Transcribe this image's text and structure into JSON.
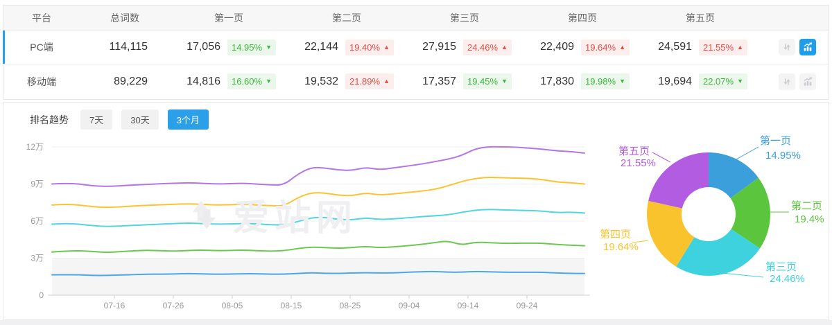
{
  "table": {
    "headers": {
      "platform": "平台",
      "total": "总词数",
      "pages": [
        "第一页",
        "第二页",
        "第三页",
        "第四页",
        "第五页"
      ]
    },
    "rows": [
      {
        "platform": "PC端",
        "total": "114,115",
        "selected": true,
        "chart_active": true,
        "pages": [
          {
            "count": "17,056",
            "pct": "14.95%",
            "dir": "down"
          },
          {
            "count": "22,144",
            "pct": "19.40%",
            "dir": "up"
          },
          {
            "count": "27,915",
            "pct": "24.46%",
            "dir": "up"
          },
          {
            "count": "22,409",
            "pct": "19.64%",
            "dir": "up"
          },
          {
            "count": "24,591",
            "pct": "21.55%",
            "dir": "up"
          }
        ]
      },
      {
        "platform": "移动端",
        "total": "89,229",
        "selected": false,
        "chart_active": false,
        "pages": [
          {
            "count": "14,816",
            "pct": "16.60%",
            "dir": "down"
          },
          {
            "count": "19,532",
            "pct": "21.89%",
            "dir": "up"
          },
          {
            "count": "17,357",
            "pct": "19.45%",
            "dir": "down"
          },
          {
            "count": "17,830",
            "pct": "19.98%",
            "dir": "down"
          },
          {
            "count": "19,694",
            "pct": "22.07%",
            "dir": "down"
          }
        ]
      }
    ]
  },
  "trend": {
    "title": "排名趋势",
    "ranges": [
      {
        "label": "7天",
        "active": false
      },
      {
        "label": "30天",
        "active": false
      },
      {
        "label": "3个月",
        "active": true
      }
    ]
  },
  "watermark": {
    "text": "爱站网"
  },
  "colors": {
    "accent_blue": "#2b9fe8",
    "badge_up_text": "#e0524a",
    "badge_up_bg": "#fdeeee",
    "badge_down_text": "#3eb73e",
    "badge_down_bg": "#eaf7ea"
  },
  "chart_data": [
    {
      "type": "line",
      "title": "",
      "stacked_cumulative": true,
      "grid": "horizontal",
      "ylim": [
        0,
        120000
      ],
      "y_ticks": [
        {
          "label": "0",
          "value_wan": 0
        },
        {
          "label": "3万",
          "value_wan": 3
        },
        {
          "label": "6万",
          "value_wan": 6
        },
        {
          "label": "9万",
          "value_wan": 9
        },
        {
          "label": "12万",
          "value_wan": 12
        }
      ],
      "x_tick_labels": [
        "07-16",
        "07-26",
        "08-05",
        "08-15",
        "08-25",
        "09-04",
        "09-14",
        "09-24"
      ],
      "low_band_wan": [
        0,
        3
      ],
      "series": [
        {
          "name": "blue",
          "color": "#4ba7e8",
          "values_wan": [
            1.65,
            1.66,
            1.65,
            1.6,
            1.6,
            1.64,
            1.66,
            1.7,
            1.7,
            1.72,
            1.75,
            1.72,
            1.7,
            1.71,
            1.74,
            1.74,
            1.7,
            1.7,
            1.76,
            1.82,
            1.77,
            1.76,
            1.8,
            1.82,
            1.8,
            1.8,
            1.86,
            1.9,
            1.92,
            1.86,
            1.86,
            1.92,
            1.9,
            1.86,
            1.86,
            1.86,
            1.85,
            1.8,
            1.76,
            1.76
          ]
        },
        {
          "name": "green",
          "color": "#6bc94f",
          "values_wan": [
            3.5,
            3.56,
            3.6,
            3.54,
            3.46,
            3.52,
            3.6,
            3.64,
            3.6,
            3.56,
            3.62,
            3.66,
            3.6,
            3.62,
            3.66,
            3.6,
            3.56,
            3.6,
            3.78,
            3.9,
            3.85,
            3.8,
            3.86,
            3.95,
            3.85,
            3.9,
            4.0,
            4.1,
            4.25,
            4.4,
            4.05,
            4.3,
            4.25,
            4.2,
            4.2,
            4.22,
            4.2,
            4.1,
            4.05,
            4.0
          ]
        },
        {
          "name": "cyan",
          "color": "#4fd6e0",
          "values_wan": [
            5.75,
            5.8,
            5.75,
            5.62,
            5.56,
            5.6,
            5.66,
            5.7,
            5.75,
            5.8,
            5.84,
            5.8,
            5.75,
            5.76,
            5.8,
            5.78,
            5.7,
            5.68,
            5.95,
            6.28,
            6.3,
            6.12,
            6.1,
            6.26,
            6.12,
            6.18,
            6.26,
            6.35,
            6.42,
            6.5,
            6.7,
            6.88,
            6.95,
            6.9,
            6.88,
            6.85,
            6.8,
            6.68,
            6.72,
            6.65
          ]
        },
        {
          "name": "yellow",
          "color": "#fbc330",
          "values_wan": [
            7.3,
            7.36,
            7.3,
            7.16,
            7.1,
            7.15,
            7.22,
            7.27,
            7.32,
            7.36,
            7.4,
            7.35,
            7.3,
            7.32,
            7.36,
            7.3,
            7.24,
            7.22,
            7.9,
            8.3,
            8.28,
            8.08,
            8.05,
            8.28,
            8.1,
            8.2,
            8.3,
            8.42,
            8.55,
            8.85,
            9.2,
            9.45,
            9.55,
            9.5,
            9.48,
            9.45,
            9.35,
            9.15,
            9.1,
            9.0
          ]
        },
        {
          "name": "purple",
          "color": "#b476e6",
          "values_wan": [
            9.0,
            9.05,
            9.0,
            8.85,
            8.8,
            8.85,
            8.92,
            8.97,
            9.02,
            9.06,
            9.1,
            9.05,
            9.0,
            9.02,
            9.06,
            9.0,
            8.92,
            8.92,
            9.8,
            10.35,
            10.3,
            10.12,
            10.1,
            10.35,
            10.15,
            10.3,
            10.45,
            10.6,
            10.8,
            11.0,
            11.3,
            11.85,
            12.02,
            12.0,
            11.98,
            11.9,
            11.8,
            11.68,
            11.62,
            11.5
          ]
        }
      ]
    },
    {
      "type": "pie",
      "title": "",
      "donut": true,
      "labels": [
        "第一页",
        "第二页",
        "第三页",
        "第四页",
        "第五页"
      ],
      "values_pct": [
        14.95,
        19.4,
        24.46,
        19.64,
        21.55
      ],
      "display_pct": [
        "14.95%",
        "19.4%",
        "24.46%",
        "19.64%",
        "21.55%"
      ],
      "colors": [
        "#3a9fdb",
        "#5cc53e",
        "#3ed2de",
        "#f8c32d",
        "#b25ce2"
      ],
      "label_layout": [
        {
          "line": [
            [
              203,
              47
            ],
            [
              237,
              28
            ]
          ],
          "name_pos": [
            239,
            24
          ],
          "pct_pos": [
            247,
            45
          ],
          "anchor": "start"
        },
        {
          "line": [
            [
              253,
              122
            ],
            [
              281,
              122
            ]
          ],
          "name_pos": [
            284,
            118
          ],
          "pct_pos": [
            289,
            137
          ],
          "anchor": "start"
        },
        {
          "line": [
            [
              185,
              210
            ],
            [
              244,
              216
            ]
          ],
          "name_pos": [
            247,
            206
          ],
          "pct_pos": [
            253,
            223
          ],
          "anchor": "start"
        },
        {
          "line": [
            [
              78,
              163
            ],
            [
              55,
              166
            ]
          ],
          "name_pos": [
            8,
            159
          ],
          "pct_pos": [
            13,
            177
          ],
          "anchor": "start"
        },
        {
          "line": [
            [
              110,
              50
            ],
            [
              84,
              36
            ]
          ],
          "name_pos": [
            35,
            39
          ],
          "pct_pos": [
            38,
            56
          ],
          "anchor": "start"
        }
      ]
    }
  ]
}
